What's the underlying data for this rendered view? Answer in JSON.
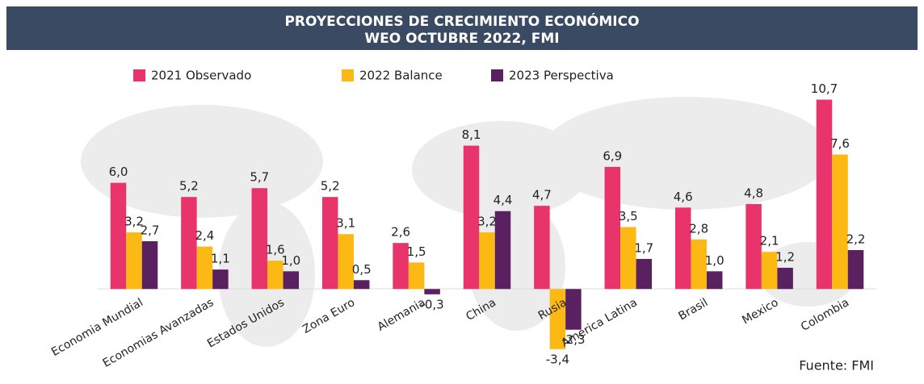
{
  "chart_data": {
    "type": "bar",
    "title": "PROYECCIONES DE CRECIMIENTO ECONÓMICO",
    "subtitle": "WEO OCTUBRE 2022, FMI",
    "source": "Fuente: FMI",
    "categories": [
      "Economia Mundial",
      "Economias Avanzadas",
      "Estados Unidos",
      "Zona Euro",
      "Alemania",
      "China",
      "Rusia",
      "America Latina",
      "Brasil",
      "Mexico",
      "Colombia"
    ],
    "series": [
      {
        "name": "2021 Observado",
        "color": "#e8336b",
        "values": [
          6.0,
          5.2,
          5.7,
          5.2,
          2.6,
          8.1,
          4.7,
          6.9,
          4.6,
          4.8,
          10.7
        ],
        "value_labels": [
          "6,0",
          "5,2",
          "5,7",
          "5,2",
          "2,6",
          "8,1",
          "4,7",
          "6,9",
          "4,6",
          "4,8",
          "10,7"
        ]
      },
      {
        "name": "2022 Balance",
        "color": "#fdb913",
        "values": [
          3.2,
          2.4,
          1.6,
          3.1,
          1.5,
          3.2,
          -3.4,
          3.5,
          2.8,
          2.1,
          7.6
        ],
        "value_labels": [
          "3,2",
          "2,4",
          "1,6",
          "3,1",
          "1,5",
          "3,2",
          "-3,4",
          "3,5",
          "2,8",
          "2,1",
          "7,6"
        ]
      },
      {
        "name": "2023 Perspectiva",
        "color": "#5a2160",
        "values": [
          2.7,
          1.1,
          1.0,
          0.5,
          -0.3,
          4.4,
          -2.3,
          1.7,
          1.0,
          1.2,
          2.2
        ],
        "value_labels": [
          "2,7",
          "1,1",
          "1,0",
          "0,5",
          "-0,3",
          "4,4",
          "-2,3",
          "1,7",
          "1,0",
          "1,2",
          "2,2"
        ]
      }
    ],
    "ylim": [
      -4,
      12
    ],
    "legend": "top"
  }
}
